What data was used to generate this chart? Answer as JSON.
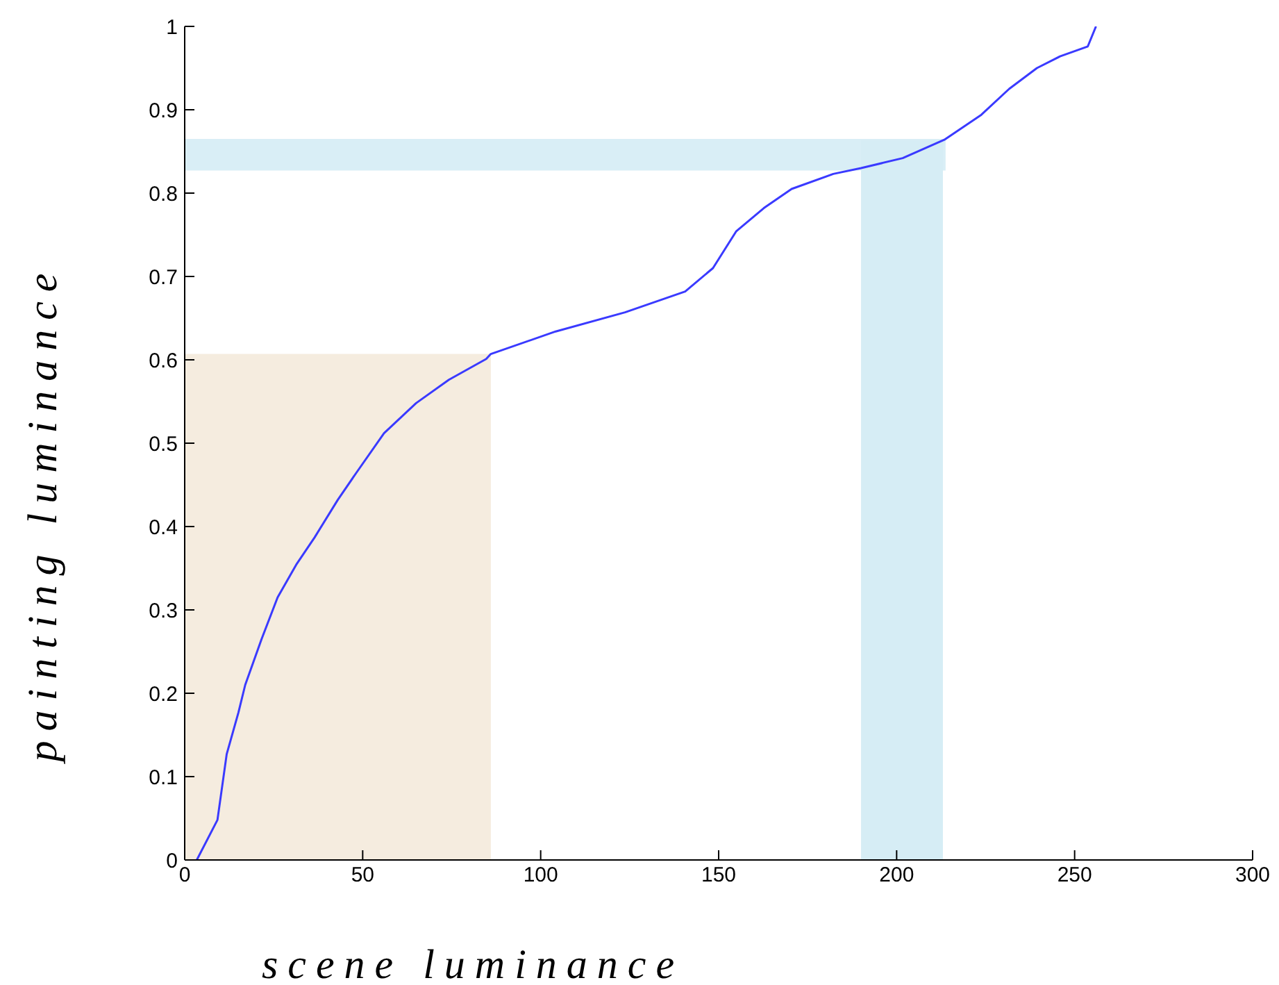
{
  "chart_data": {
    "type": "line",
    "xlabel": "scene luminance",
    "ylabel": "painting luminance",
    "xlim": [
      0,
      300
    ],
    "xticks": [
      0,
      50,
      100,
      150,
      200,
      250,
      300
    ],
    "ylim": [
      0,
      1
    ],
    "yticks": [
      0,
      0.1,
      0.2,
      0.3,
      0.4,
      0.5,
      0.6,
      0.7,
      0.8,
      0.9,
      1
    ],
    "grid": false,
    "legend": false,
    "marker": "none",
    "line_style": "solid",
    "bands": [
      {
        "axis": "x",
        "from": 0,
        "to": 86,
        "color": "#f5ecdf"
      },
      {
        "axis": "y",
        "from": 0.827,
        "to": 0.865,
        "color": "#d9eef6"
      },
      {
        "axis": "x",
        "from": 190,
        "to": 213,
        "color": "#d6edf5"
      }
    ],
    "series": [
      {
        "color": "#3a3aff",
        "x": [
          3.4,
          9.2,
          11.8,
          15.1,
          17,
          21.6,
          26.1,
          31.3,
          36.5,
          43,
          48.3,
          56,
          65,
          74.2,
          84.7,
          86,
          104.2,
          123.7,
          140.6,
          148.4,
          154.9,
          162.7,
          170.5,
          182.2,
          190,
          201.7,
          213.4,
          223.8,
          231.6,
          239.4,
          245.9,
          253.7,
          256
        ],
        "values": [
          0,
          0.048,
          0.127,
          0.177,
          0.21,
          0.265,
          0.315,
          0.354,
          0.387,
          0.432,
          0.465,
          0.512,
          0.548,
          0.576,
          0.601,
          0.607,
          0.634,
          0.657,
          0.682,
          0.71,
          0.754,
          0.782,
          0.805,
          0.823,
          0.83,
          0.842,
          0.864,
          0.894,
          0.925,
          0.95,
          0.964,
          0.976,
          1
        ]
      }
    ]
  }
}
